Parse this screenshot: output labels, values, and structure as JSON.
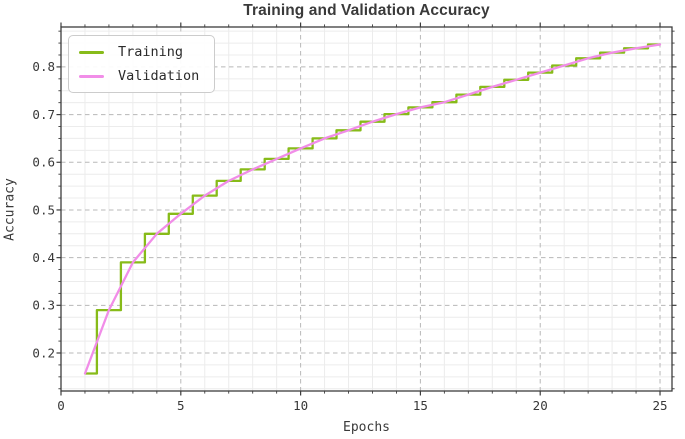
{
  "title": "Training and Validation Accuracy",
  "legend": {
    "items": [
      {
        "label": "Training",
        "color": "#87bb19"
      },
      {
        "label": "Validation",
        "color": "#f18de8"
      }
    ]
  },
  "chart_data": {
    "type": "line",
    "title": "Training and Validation Accuracy",
    "xlabel": "Epochs",
    "ylabel": "Accuracy",
    "x": [
      1,
      2,
      3,
      4,
      5,
      6,
      7,
      8,
      9,
      10,
      11,
      12,
      13,
      14,
      15,
      16,
      17,
      18,
      19,
      20,
      21,
      22,
      23,
      24,
      25
    ],
    "series": [
      {
        "name": "Training",
        "style": "steps-mid",
        "color": "#87bb19",
        "line_width": 2.3,
        "values": [
          0.157,
          0.29,
          0.39,
          0.45,
          0.492,
          0.53,
          0.561,
          0.585,
          0.607,
          0.629,
          0.65,
          0.667,
          0.685,
          0.701,
          0.715,
          0.726,
          0.742,
          0.758,
          0.773,
          0.788,
          0.803,
          0.818,
          0.83,
          0.839,
          0.847
        ]
      },
      {
        "name": "Validation",
        "style": "line",
        "color": "#f18de8",
        "line_width": 2.3,
        "values": [
          0.157,
          0.29,
          0.39,
          0.45,
          0.492,
          0.53,
          0.561,
          0.585,
          0.607,
          0.629,
          0.65,
          0.667,
          0.685,
          0.701,
          0.715,
          0.726,
          0.742,
          0.758,
          0.773,
          0.788,
          0.803,
          0.818,
          0.83,
          0.839,
          0.847
        ]
      }
    ],
    "xlim": [
      0,
      25.5
    ],
    "ylim": [
      0.1203,
      0.8837
    ],
    "xticks": [
      0,
      5,
      10,
      15,
      20,
      25
    ],
    "xtick_labels": [
      "0",
      "5",
      "10",
      "15",
      "20",
      "25"
    ],
    "yticks": [
      0.2,
      0.3,
      0.4,
      0.5,
      0.6,
      0.7,
      0.8
    ],
    "ytick_labels": [
      "0.2",
      "0.3",
      "0.4",
      "0.5",
      "0.6",
      "0.7",
      "0.8"
    ],
    "minor_x_step": 1,
    "minor_y_step": 0.025,
    "grid": {
      "major": "dashed",
      "minor": "solid"
    },
    "legend_position": "upper-left",
    "colors": {
      "grid_major": "#b8b8b8",
      "grid_minor": "#ececec",
      "axis": "#3d3d3d",
      "tick_text": "#383838"
    }
  }
}
